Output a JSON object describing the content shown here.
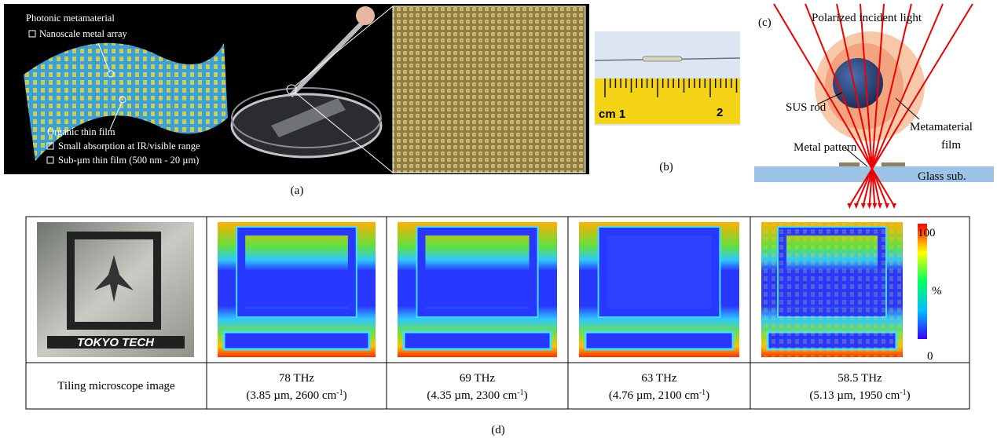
{
  "panel_a": {
    "label": "(a)",
    "title": "Photonic metamaterial",
    "items_top": [
      "Nanoscale metal array"
    ],
    "film": "Organic thin film",
    "items_bottom": [
      "Small absorption at IR/visible range",
      "Sub-µm thin film (500 nm - 20 µm)"
    ]
  },
  "panel_b": {
    "label": "(b)",
    "ruler": [
      "cm 1",
      "2"
    ]
  },
  "panel_c": {
    "label": "(c)",
    "light": "Polarized incident light",
    "rod": "SUS rod",
    "film": [
      "Metamaterial",
      "film"
    ],
    "pattern": "Metal pattern",
    "glass": "Glass sub."
  },
  "panel_d": {
    "label": "(d)",
    "logo": "TOKYO TECH",
    "colorbar": {
      "max": "100",
      "unit": "%",
      "min": "0"
    },
    "first_cell": "Tiling microscope image",
    "columns": [
      {
        "frequency": "78 THz",
        "detail": "(3.85 µm, 2600 cm",
        "exponent": "-1",
        "close": ")"
      },
      {
        "frequency": "69 THz",
        "detail": "(4.35 µm, 2300 cm",
        "exponent": "-1",
        "close": ")"
      },
      {
        "frequency": "63 THz",
        "detail": "(4.76 µm, 2100 cm",
        "exponent": "-1",
        "close": ")"
      },
      {
        "frequency": "58.5 THz",
        "detail": "(5.13 µm, 1950 cm",
        "exponent": "-1",
        "close": ")"
      }
    ]
  }
}
